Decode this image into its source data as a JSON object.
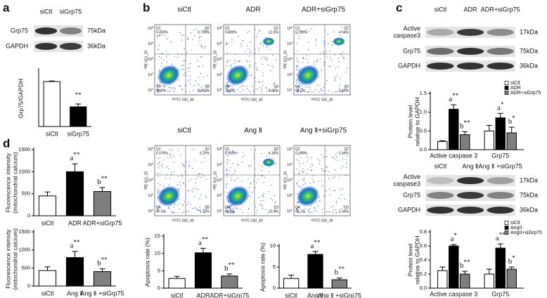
{
  "panel_labels": {
    "a": "a",
    "b": "b",
    "c": "c",
    "d": "d"
  },
  "blot_a": {
    "columns": [
      "siCtl",
      "siGrp75"
    ],
    "rows": [
      [
        "Grp75"
      ],
      [
        "GAPDH"
      ]
    ],
    "sizes": [
      "75kDa",
      "36kDa"
    ]
  },
  "blot_c_top": {
    "columns": [
      "siCtl",
      "ADR",
      "ADR+siGrp75"
    ],
    "rows": [
      [
        "Active",
        "caspase3"
      ],
      [
        "Grp75"
      ],
      [
        "GAPDH"
      ]
    ],
    "sizes": [
      "17kDa",
      "75kDa",
      "36kDa"
    ]
  },
  "blot_c_bottom": {
    "columns": [
      "siCtl",
      "Ang Ⅱ",
      "Ang Ⅱ +siGrp75"
    ],
    "rows": [
      [
        "Active",
        "caspase3"
      ],
      [
        "Grp75"
      ],
      [
        "GAPDH"
      ]
    ],
    "sizes": [
      "17kDa",
      "75kDa",
      "36kDa"
    ]
  },
  "flow": {
    "x_label": "*FITC 530_40",
    "y_label": "*PE 610_20",
    "tick_base": "10",
    "tick_exponents": [
      "1",
      "2",
      "3",
      "4",
      "5"
    ],
    "quadrant_names": [
      "Q1",
      "Q2",
      "Q3",
      "Q4"
    ],
    "panels": [
      {
        "title": "siCtl",
        "quadrants": [
          "0.430%",
          "0.790%",
          "0.860%",
          "99.0%"
        ]
      },
      {
        "title": "ADR",
        "quadrants": [
          "0.880%",
          "11.5%",
          "8.69%",
          "78.0%"
        ]
      },
      {
        "title": "ADR+siGrp75",
        "quadrants": [
          "0.180%",
          "4.54%",
          "4.40%",
          "91.0%"
        ]
      },
      {
        "title": "siCtl",
        "quadrants": [
          "0.170%",
          "1.20%",
          "1.10%",
          "97.5%"
        ]
      },
      {
        "title": "Ang Ⅱ",
        "quadrants": [
          "0.150%",
          "4.16%",
          "10.9%",
          "84.8%"
        ]
      },
      {
        "title": "Ang Ⅱ+siGrp75",
        "quadrants": [
          "0.100%",
          "2.49%",
          "2.34%",
          "95.1%"
        ]
      }
    ]
  },
  "chart_data": [
    {
      "type": "bar",
      "ylabel_lines": [
        "Grp75/GAPDH"
      ],
      "categories": [
        "siCtl",
        "siGrp75"
      ],
      "values": [
        0.8,
        0.35
      ],
      "errors": [
        0.01,
        0.05
      ],
      "colors": [
        "#ffffff",
        "#000000"
      ],
      "annotations": [
        null,
        {
          "sup": "**"
        }
      ],
      "ylim": [
        0,
        1
      ]
    },
    {
      "type": "bar",
      "ylabel_lines": [
        "Fluorescence intensity",
        "(mitochondrial calcium)"
      ],
      "categories": [
        "siCtl",
        "ADR",
        "ADR+siGrp75"
      ],
      "values": [
        450,
        1000,
        550
      ],
      "errors": [
        90,
        180,
        90
      ],
      "colors": [
        "#ffffff",
        "#000000",
        "#7f7f7f"
      ],
      "annotations": [
        null,
        {
          "letter": "a",
          "sup": "**"
        },
        {
          "letter": "b",
          "sup": "**"
        }
      ],
      "ylim": [
        0,
        1500
      ],
      "yticks": [
        0,
        500,
        1000,
        1500
      ]
    },
    {
      "type": "bar",
      "ylabel_lines": [
        "Fluorescence intensity",
        "(mitochondrial calcium)"
      ],
      "categories": [
        "siCtl",
        "Ang Ⅱ",
        "Ang Ⅱ +siGrp75"
      ],
      "values": [
        430,
        790,
        400
      ],
      "errors": [
        100,
        170,
        80
      ],
      "colors": [
        "#ffffff",
        "#000000",
        "#7f7f7f"
      ],
      "annotations": [
        null,
        {
          "letter": "a",
          "sup": "**"
        },
        {
          "letter": "b",
          "sup": "**"
        }
      ],
      "ylim": [
        0,
        1500
      ],
      "yticks": [
        0,
        500,
        1000,
        1500
      ]
    },
    {
      "type": "bar",
      "ylabel_lines": [
        "Apoptosis rate (%)"
      ],
      "categories": [
        "siCtl",
        "ADR",
        "ADR+siGrp75"
      ],
      "values": [
        2.8,
        10.2,
        3.5
      ],
      "errors": [
        0.6,
        1.3,
        0.6
      ],
      "colors": [
        "#ffffff",
        "#000000",
        "#7f7f7f"
      ],
      "annotations": [
        null,
        {
          "letter": "a",
          "sup": "**"
        },
        {
          "letter": "b",
          "sup": "**"
        }
      ],
      "ylim": [
        0,
        15
      ],
      "yticks": [
        0,
        5,
        10,
        15
      ]
    },
    {
      "type": "bar",
      "ylabel_lines": [
        "Apoptosis rate (%)"
      ],
      "categories": [
        "siCtl",
        "Ang Ⅱ",
        "Ang Ⅱ +siGrp75"
      ],
      "values": [
        2.3,
        8.0,
        2.0
      ],
      "errors": [
        0.8,
        0.7,
        0.4
      ],
      "colors": [
        "#ffffff",
        "#000000",
        "#7f7f7f"
      ],
      "annotations": [
        null,
        {
          "letter": "a",
          "sup": "**"
        },
        {
          "letter": "b",
          "sup": "**"
        }
      ],
      "ylim": [
        0,
        10
      ],
      "yticks": [
        0,
        5,
        10
      ]
    },
    {
      "type": "grouped_bar",
      "ylabel_lines": [
        "Protein level",
        "relative to GAPDH"
      ],
      "categories": [
        "Active  caspase 3",
        "Grp75"
      ],
      "series": [
        {
          "name": "siCtl",
          "color": "#ffffff",
          "values": [
            0.22,
            0.5
          ],
          "errors": [
            0.02,
            0.15
          ]
        },
        {
          "name": "ADR",
          "color": "#000000",
          "values": [
            1.08,
            0.85
          ],
          "errors": [
            0.12,
            0.12
          ],
          "annotations": [
            {
              "letter": "a",
              "sup": "**"
            },
            {
              "letter": "a",
              "sup": "*"
            }
          ]
        },
        {
          "name": "ADR+siGrp75",
          "color": "#7f7f7f",
          "values": [
            0.4,
            0.45
          ],
          "errors": [
            0.08,
            0.15
          ],
          "annotations": [
            {
              "letter": "b",
              "sup": "**"
            },
            {
              "letter": "b",
              "sup": "*"
            }
          ]
        }
      ],
      "ylim": [
        0,
        1.5
      ],
      "yticks": [
        {
          "value": 0,
          "label": "0.0"
        },
        0.5,
        {
          "value": 1,
          "label": "1.0"
        },
        1.5
      ]
    },
    {
      "type": "grouped_bar",
      "ylabel_lines": [
        "Protein level",
        "relative to GAPDH"
      ],
      "categories": [
        "Active  caspase 3",
        "Grp75"
      ],
      "series": [
        {
          "name": "siCtl",
          "color": "#ffffff",
          "values": [
            0.25,
            0.2
          ],
          "errors": [
            0.05,
            0.07
          ]
        },
        {
          "name": "AngII",
          "color": "#000000",
          "values": [
            0.6,
            0.57
          ],
          "errors": [
            0.02,
            0.06
          ],
          "annotations": [
            {
              "letter": "a",
              "sup": "*"
            },
            {
              "letter": "a",
              "sup": "**"
            }
          ]
        },
        {
          "name": "AngII+siGrp75",
          "color": "#7f7f7f",
          "values": [
            0.2,
            0.27
          ],
          "errors": [
            0.04,
            0.03
          ],
          "annotations": [
            {
              "letter": "b",
              "sup": "**"
            },
            {
              "letter": "b",
              "sup": "*"
            }
          ]
        }
      ],
      "ylim": [
        0,
        0.8
      ],
      "yticks": [
        {
          "value": 0,
          "label": "0.0"
        },
        0.2,
        0.4,
        0.6,
        0.8
      ]
    }
  ]
}
